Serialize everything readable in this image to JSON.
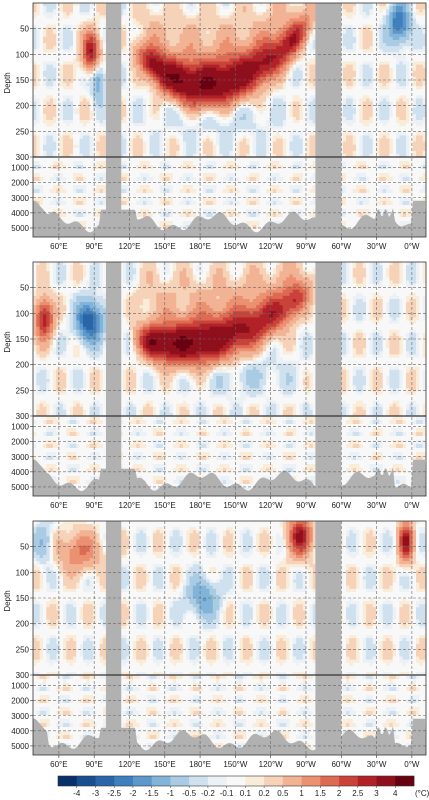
{
  "colors": {
    "land": "#b1b1b1",
    "grid": "#666666",
    "frame": "#333333",
    "background": "#ffffff"
  },
  "chart_data": {
    "type": "heatmap",
    "layout": "three stacked longitude-depth sections",
    "x_tick_labels": [
      "60°E",
      "90°E",
      "120°E",
      "150°E",
      "180°E",
      "150°W",
      "120°W",
      "90°W",
      "60°W",
      "30°W",
      "0°W"
    ],
    "y_label": "Depth",
    "upper_depth_ticks": [
      "50",
      "100",
      "150",
      "200",
      "250",
      "300"
    ],
    "upper_depth_values": [
      50,
      100,
      150,
      200,
      250,
      300
    ],
    "lower_depth_ticks": [
      "1000",
      "2000",
      "3000",
      "4000",
      "5000"
    ],
    "lower_depth_values": [
      1000,
      2000,
      3000,
      4000,
      5000
    ],
    "upper_ylim": [
      0,
      300
    ],
    "lower_ylim": [
      300,
      5600
    ],
    "land_longitude_bands_deg_east": [
      [
        100,
        113
      ],
      [
        278,
        300
      ]
    ],
    "panels": [
      {
        "id": "top",
        "features": [
          {
            "kind": "warm",
            "lon": [
              125,
              275
            ],
            "center_depth_at_ends": [
              95,
              35
            ],
            "deepest": {
              "lon": 180,
              "depth": 160
            },
            "peak": 4.0
          },
          {
            "kind": "warm",
            "lon": [
              80,
              95
            ],
            "depth": 95,
            "peak": 3.0
          },
          {
            "kind": "cool",
            "lon": [
              90,
              97
            ],
            "depth": 150,
            "peak": -1.5
          },
          {
            "kind": "cool",
            "lon": [
              340,
              358
            ],
            "depth": 40,
            "peak": -2.5
          },
          {
            "kind": "cool",
            "lon": [
              150,
              240
            ],
            "depth": 220,
            "peak": -0.5
          }
        ]
      },
      {
        "id": "middle",
        "features": [
          {
            "kind": "warm",
            "lon": [
              125,
              275
            ],
            "center_depth_at_ends": [
              150,
              50
            ],
            "deepest": {
              "lon": 160,
              "depth": 160
            },
            "peak": 4.0
          },
          {
            "kind": "warm",
            "lon": [
              40,
              55
            ],
            "depth": 110,
            "peak": 3.0
          },
          {
            "kind": "cool",
            "lon": [
              75,
              97
            ],
            "depth": 115,
            "peak": -3.0
          },
          {
            "kind": "cool",
            "lon": [
              170,
              260
            ],
            "depth": 220,
            "peak": -0.5
          }
        ]
      },
      {
        "id": "bottom",
        "features": [
          {
            "kind": "warm",
            "lon": [
              255,
              275
            ],
            "depth": 30,
            "peak": 3.0
          },
          {
            "kind": "warm",
            "lon": [
              60,
              95
            ],
            "depth": 60,
            "peak": 1.5
          },
          {
            "kind": "cool",
            "lon": [
              170,
              195
            ],
            "depth": 150,
            "peak": -1.5
          },
          {
            "kind": "cool",
            "lon": [
              40,
              55
            ],
            "depth": 40,
            "peak": -1.0
          },
          {
            "kind": "warm",
            "lon": [
              350,
              360
            ],
            "depth": 40,
            "peak": 3.0
          }
        ]
      }
    ],
    "colorbar": {
      "levels": [
        -4,
        -3,
        -2.5,
        -2,
        -1.5,
        -1,
        -0.5,
        -0.2,
        -0.1,
        0.1,
        0.2,
        0.5,
        1,
        1.5,
        2,
        2.5,
        3,
        4
      ],
      "tick_labels": [
        "-4",
        "-3",
        "-2.5",
        "-2",
        "-1.5",
        "-1",
        "-0.5",
        "-0.2",
        "-0.1",
        "0.1",
        "0.2",
        "0.5",
        "1",
        "1.5",
        "2",
        "2.5",
        "3",
        "4"
      ],
      "unit": "(°C)",
      "colors": [
        "#08306b",
        "#1a4f8f",
        "#2a65a8",
        "#3f7fbd",
        "#5d98cb",
        "#82b3d9",
        "#a9cce4",
        "#cfe1ef",
        "#ecf1f6",
        "#f8f8f8",
        "#f9ecd9",
        "#f6d2b8",
        "#f2b394",
        "#eb9070",
        "#dd6a52",
        "#c9433a",
        "#b02228",
        "#8f0f1d",
        "#670010"
      ]
    }
  }
}
